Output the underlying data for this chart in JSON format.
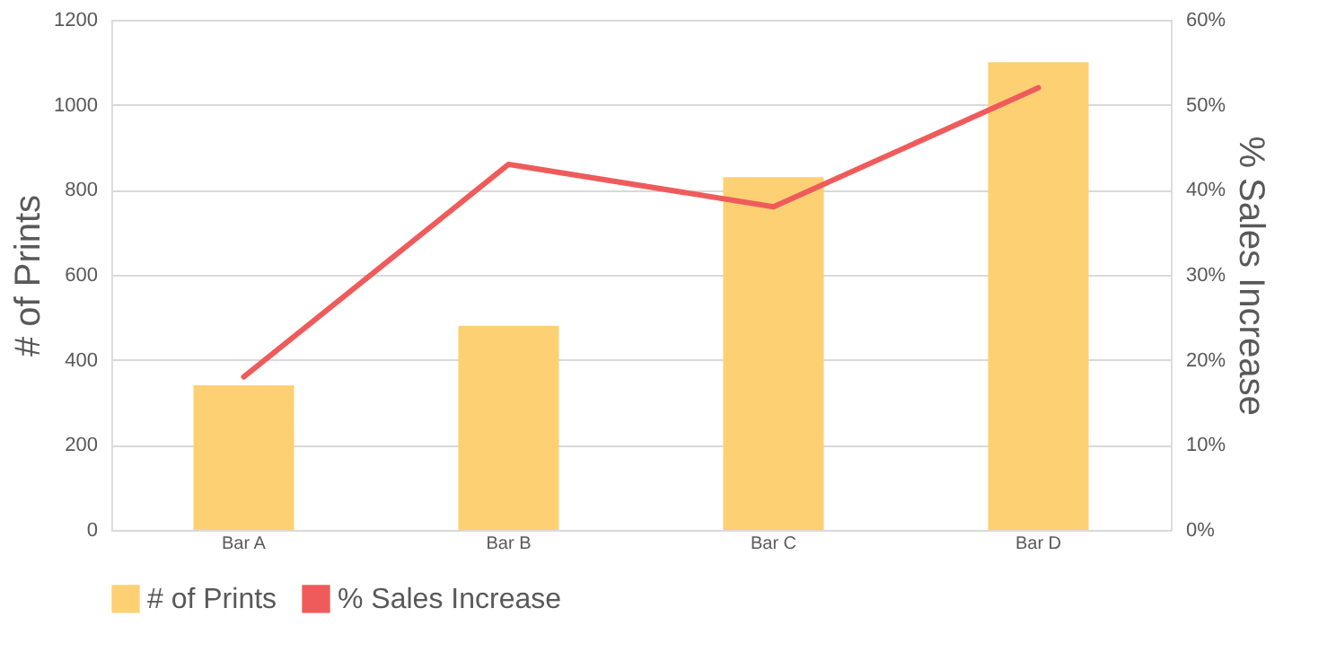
{
  "chart_data": {
    "type": "bar",
    "categories": [
      "Bar A",
      "Bar B",
      "Bar C",
      "Bar D"
    ],
    "series": [
      {
        "name": "# of Prints",
        "color": "#fdd173",
        "values": [
          340,
          480,
          830,
          1100
        ]
      },
      {
        "name": "% Sales Increase",
        "type": "line",
        "axis": "y2",
        "color": "#ef5b5b",
        "values": [
          18,
          43,
          38,
          52
        ]
      }
    ],
    "ylabel": "# of Prints",
    "y2label": "% Sales Increase",
    "ylim": [
      0,
      1200
    ],
    "yticks": [
      0,
      200,
      400,
      600,
      800,
      1000,
      1200
    ],
    "y2lim": [
      0,
      60
    ],
    "y2ticks": [
      {
        "value": 0,
        "label": "0%"
      },
      {
        "value": 10,
        "label": "10%"
      },
      {
        "value": 20,
        "label": "20%"
      },
      {
        "value": 30,
        "label": "30%"
      },
      {
        "value": 40,
        "label": "40%"
      },
      {
        "value": 50,
        "label": "50%"
      },
      {
        "value": 60,
        "label": "60%"
      }
    ],
    "grid": "y",
    "legend": "bottom"
  }
}
